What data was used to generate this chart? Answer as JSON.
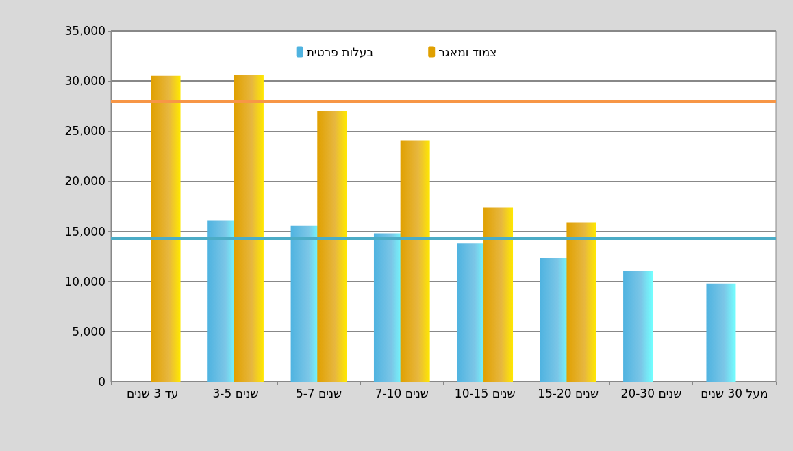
{
  "chart_data": {
    "type": "bar",
    "categories": [
      "עד 3 שנים",
      "3-5 שנים",
      "5-7 שנים",
      "7-10 שנים",
      "10-15 שנים",
      "15-20 שנים",
      "20-30 שנים",
      "מעל 30 שנים"
    ],
    "series": [
      {
        "name": "בעלות פרטית",
        "color": "#4fb3e0",
        "values": [
          null,
          16100,
          15600,
          14800,
          13800,
          12300,
          11000,
          9800
        ]
      },
      {
        "name": "צמוד ומאגר",
        "color": "#e0a000",
        "values": [
          30500,
          30600,
          27000,
          24100,
          17400,
          15900,
          null,
          null
        ]
      }
    ],
    "ylim": [
      0,
      35000
    ],
    "yticks": [
      0,
      {
        "value": 5000,
        "label": "5,000"
      },
      {
        "value": 10000,
        "label": "10,000"
      },
      {
        "value": 15000,
        "label": "15,000"
      },
      {
        "value": 20000,
        "label": "20,000"
      },
      {
        "value": 25000,
        "label": "25,000"
      },
      {
        "value": 30000,
        "label": "30,000"
      },
      {
        "value": 35000,
        "label": "35,000"
      }
    ],
    "grid": "y",
    "legend": "top",
    "ref_lines": [
      {
        "axis": "y",
        "value": 28000,
        "color": "#f79646"
      },
      {
        "axis": "y",
        "value": 14300,
        "color": "#4bacc6"
      }
    ]
  }
}
